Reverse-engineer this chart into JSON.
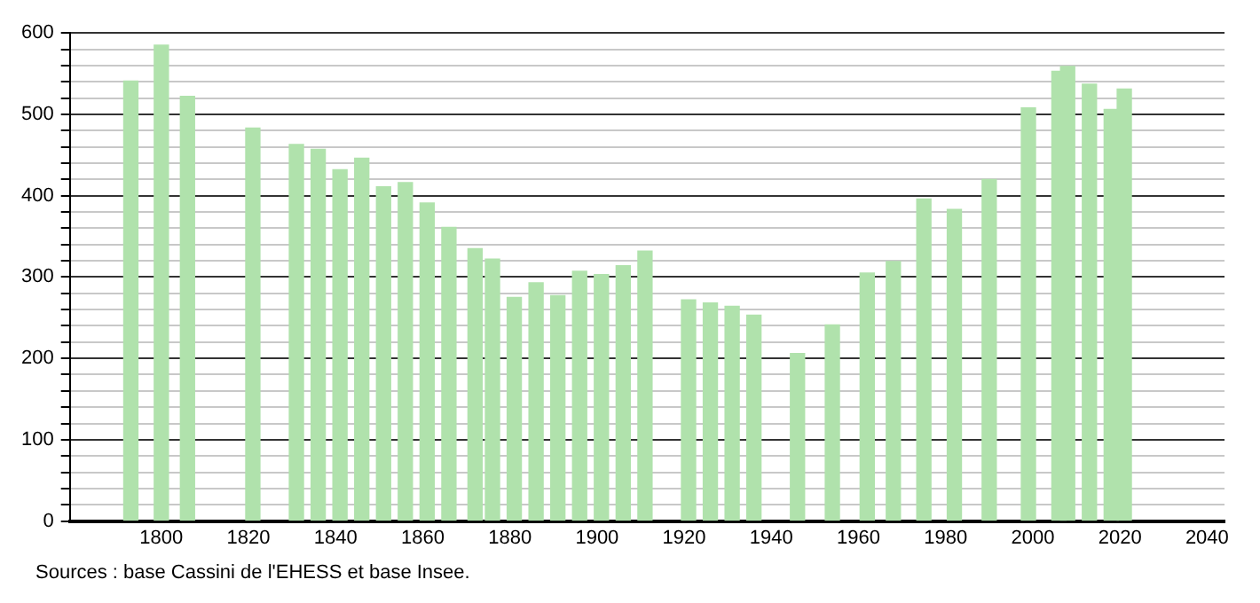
{
  "chart_data": {
    "type": "bar",
    "x": [
      1793,
      1800,
      1806,
      1821,
      1831,
      1836,
      1841,
      1846,
      1851,
      1856,
      1861,
      1866,
      1872,
      1876,
      1881,
      1886,
      1891,
      1896,
      1901,
      1906,
      1911,
      1921,
      1926,
      1931,
      1936,
      1946,
      1954,
      1962,
      1968,
      1975,
      1982,
      1990,
      1999,
      2006,
      2008,
      2013,
      2018,
      2021
    ],
    "values": [
      541,
      585,
      522,
      483,
      463,
      457,
      432,
      446,
      411,
      416,
      391,
      361,
      335,
      322,
      275,
      293,
      277,
      307,
      303,
      314,
      332,
      272,
      268,
      264,
      253,
      206,
      241,
      305,
      319,
      396,
      383,
      420,
      508,
      553,
      559,
      537,
      506,
      531
    ],
    "color": "#b0e2ac",
    "xlim": [
      1779,
      2044
    ],
    "xticks": [
      1800,
      1820,
      1840,
      1860,
      1880,
      1900,
      1920,
      1940,
      1960,
      1980,
      2000,
      2020,
      2040
    ],
    "ylim": [
      0,
      600
    ],
    "yticks": [
      0,
      {
        "value": 20,
        "label": null
      },
      {
        "value": 40,
        "label": null
      },
      {
        "value": 60,
        "label": null
      },
      {
        "value": 80,
        "label": null
      },
      100,
      {
        "value": 120,
        "label": null
      },
      {
        "value": 140,
        "label": null
      },
      {
        "value": 160,
        "label": null
      },
      {
        "value": 180,
        "label": null
      },
      200,
      {
        "value": 220,
        "label": null
      },
      {
        "value": 240,
        "label": null
      },
      {
        "value": 260,
        "label": null
      },
      {
        "value": 280,
        "label": null
      },
      300,
      {
        "value": 320,
        "label": null
      },
      {
        "value": 340,
        "label": null
      },
      {
        "value": 360,
        "label": null
      },
      {
        "value": 380,
        "label": null
      },
      400,
      {
        "value": 420,
        "label": null
      },
      {
        "value": 440,
        "label": null
      },
      {
        "value": 460,
        "label": null
      },
      {
        "value": 480,
        "label": null
      },
      500,
      {
        "value": 520,
        "label": null
      },
      {
        "value": 540,
        "label": null
      },
      {
        "value": 560,
        "label": null
      },
      {
        "value": 580,
        "label": null
      },
      600
    ],
    "grid": "y",
    "legend": false,
    "annotations": [
      "Sources : base Cassini de l'EHESS et base Insee."
    ]
  }
}
